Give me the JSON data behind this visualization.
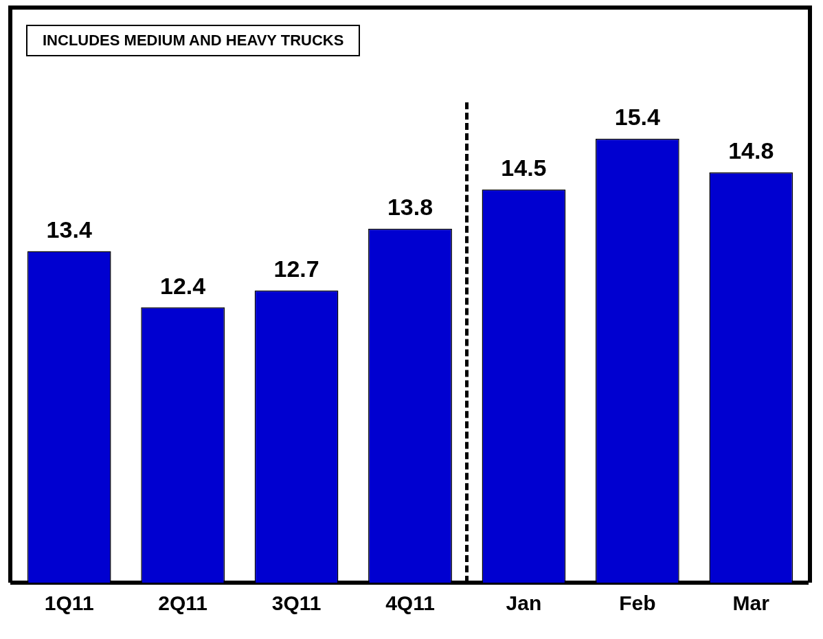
{
  "chart_data": {
    "type": "bar",
    "categories": [
      "1Q11",
      "2Q11",
      "3Q11",
      "4Q11",
      "Jan",
      "Feb",
      "Mar"
    ],
    "values": [
      13.4,
      12.4,
      12.7,
      13.8,
      14.5,
      15.4,
      14.8
    ],
    "color": "#0000d0",
    "data_labels": true,
    "ylim": [
      7.5,
      17.7
    ],
    "tick_labels": "x",
    "grid": false,
    "legend": false,
    "annotations": [
      "INCLUDES MEDIUM AND HEAVY TRUCKS"
    ]
  }
}
